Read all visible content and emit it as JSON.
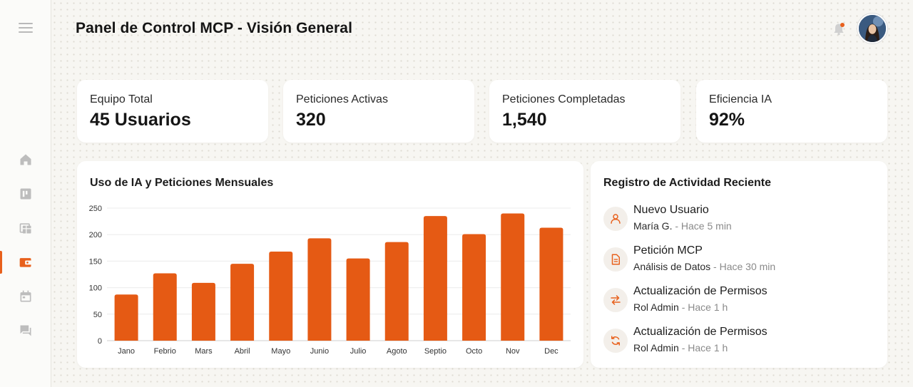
{
  "header": {
    "title": "Panel de Control MCP - Visión General"
  },
  "sidebar": {
    "items": [
      {
        "name": "home",
        "icon": "home-icon",
        "active": false
      },
      {
        "name": "dashboard",
        "icon": "dashboard-icon",
        "active": false
      },
      {
        "name": "tables",
        "icon": "table-icon",
        "active": false
      },
      {
        "name": "wallet",
        "icon": "wallet-icon",
        "active": true
      },
      {
        "name": "calendar",
        "icon": "calendar-icon",
        "active": false
      },
      {
        "name": "messages",
        "icon": "chat-icon",
        "active": false
      }
    ]
  },
  "stats": [
    {
      "label": "Equipo Total",
      "value": "45 Usuarios"
    },
    {
      "label": "Peticiones Activas",
      "value": "320"
    },
    {
      "label": "Peticiones Completadas",
      "value": "1,540"
    },
    {
      "label": "Eficiencia IA",
      "value": "92%"
    }
  ],
  "chart_data": {
    "type": "bar",
    "title": "Uso de IA y Peticiones Mensuales",
    "categories": [
      "Jano",
      "Febrio",
      "Mars",
      "Abril",
      "Mayo",
      "Junio",
      "Julio",
      "Agoto",
      "Septio",
      "Octo",
      "Nov",
      "Dec"
    ],
    "values": [
      87,
      127,
      109,
      145,
      168,
      193,
      155,
      186,
      235,
      201,
      240,
      213
    ],
    "yticks": [
      0,
      50,
      100,
      150,
      200,
      250
    ],
    "ylim": [
      0,
      250
    ],
    "xlabel": "",
    "ylabel": "",
    "grid": true,
    "bar_color": "#e55a14"
  },
  "activity": {
    "title": "Registro de Actividad Reciente",
    "items": [
      {
        "icon": "user-icon",
        "title": "Nuevo Usuario",
        "who": "María G.",
        "when": " - Hace 5 min"
      },
      {
        "icon": "document-icon",
        "title": "Petición MCP",
        "who": "Análisis de Datos",
        "when": " - Hace 30 min"
      },
      {
        "icon": "swap-icon",
        "title": "Actualización de Permisos",
        "who": "Rol Admin",
        "when": " - Hace 1 h"
      },
      {
        "icon": "sync-icon",
        "title": "Actualización de Permisos",
        "who": "Rol Admin",
        "when": " - Hace 1 h"
      }
    ]
  },
  "colors": {
    "accent": "#e8601c",
    "icon_gray": "#bdbdbd"
  }
}
